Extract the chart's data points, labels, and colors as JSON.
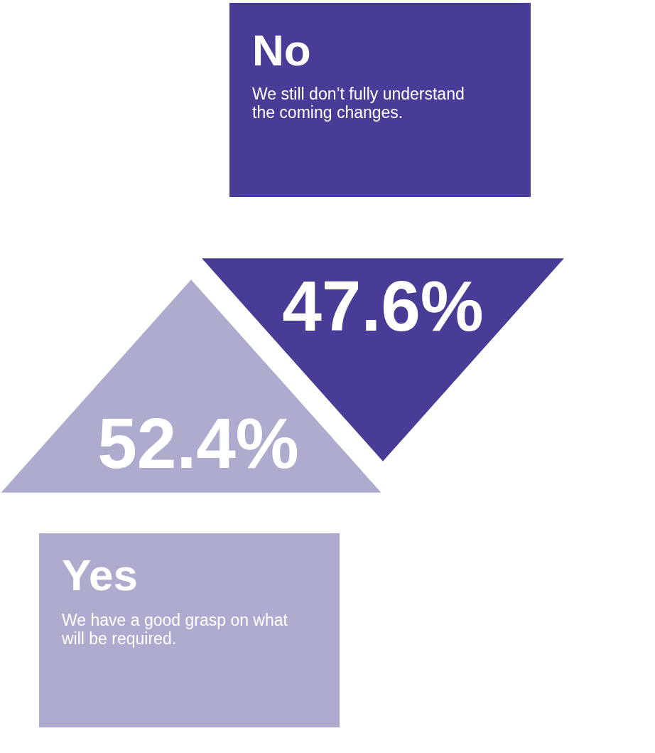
{
  "chart_data": {
    "type": "other",
    "categories": [
      "No",
      "Yes"
    ],
    "values": [
      47.6,
      52.4
    ],
    "value_labels": [
      "47.6%",
      "52.4%"
    ],
    "colors": [
      "#483d96",
      "#aeacce"
    ],
    "annotations": [
      "We still don’t fully understand the coming changes.",
      "We have a good grasp on what will be required."
    ]
  }
}
